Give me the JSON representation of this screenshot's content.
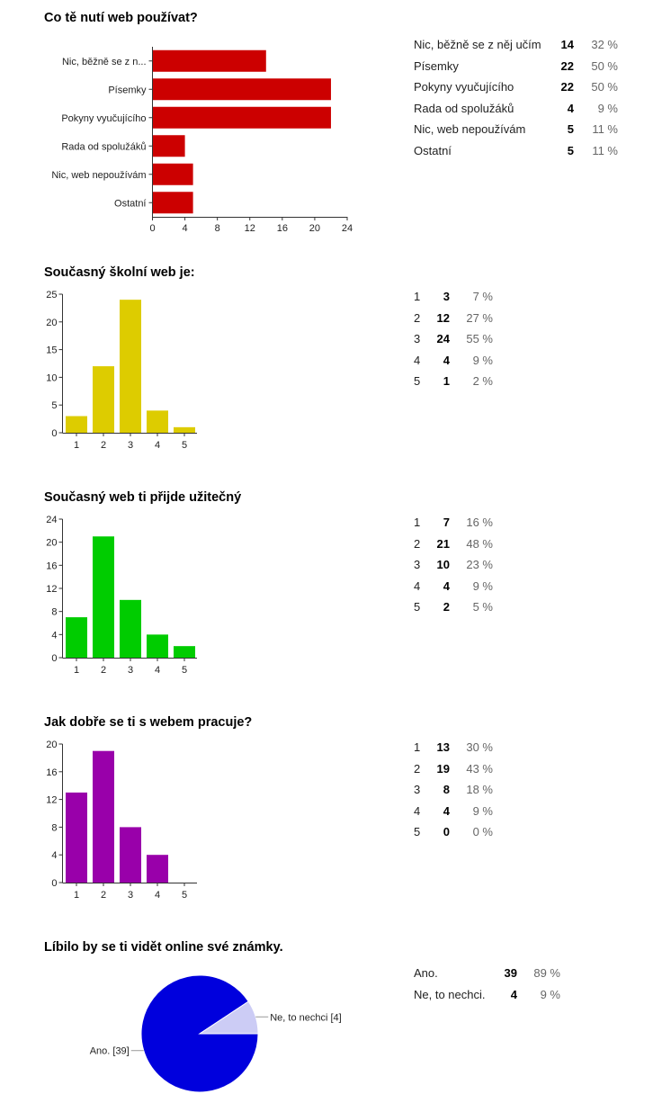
{
  "chart_data": [
    {
      "type": "bar",
      "orientation": "horizontal",
      "title": "Co tě nutí web používat?",
      "categories": [
        "Nic, běžně se z n...",
        "Písemky",
        "Pokyny vyučujícího",
        "Rada od spolužáků",
        "Nic, web nepoužívám",
        "Ostatní"
      ],
      "values": [
        14,
        22,
        22,
        4,
        5,
        5
      ],
      "xlim": [
        0,
        24
      ],
      "ticks": [
        0,
        4,
        8,
        12,
        16,
        20,
        24
      ],
      "color": "#cc0000",
      "table": [
        {
          "label": "Nic, běžně se z něj učím",
          "count": "14",
          "percent": "32 %"
        },
        {
          "label": "Písemky",
          "count": "22",
          "percent": "50 %"
        },
        {
          "label": "Pokyny vyučujícího",
          "count": "22",
          "percent": "50 %"
        },
        {
          "label": "Rada od spolužáků",
          "count": "4",
          "percent": "9 %"
        },
        {
          "label": "Nic, web nepoužívám",
          "count": "5",
          "percent": "11 %"
        },
        {
          "label": "Ostatní",
          "count": "5",
          "percent": "11 %"
        }
      ]
    },
    {
      "type": "bar",
      "title": "Současný školní web je:",
      "categories": [
        "1",
        "2",
        "3",
        "4",
        "5"
      ],
      "values": [
        3,
        12,
        24,
        4,
        1
      ],
      "ylim": [
        0,
        25
      ],
      "ticks": [
        0,
        5,
        10,
        15,
        20,
        25
      ],
      "color": "#ddcc00",
      "table": [
        {
          "label": "1",
          "count": "3",
          "percent": "7 %"
        },
        {
          "label": "2",
          "count": "12",
          "percent": "27 %"
        },
        {
          "label": "3",
          "count": "24",
          "percent": "55 %"
        },
        {
          "label": "4",
          "count": "4",
          "percent": "9 %"
        },
        {
          "label": "5",
          "count": "1",
          "percent": "2 %"
        }
      ]
    },
    {
      "type": "bar",
      "title": "Současný web ti přijde užitečný",
      "categories": [
        "1",
        "2",
        "3",
        "4",
        "5"
      ],
      "values": [
        7,
        21,
        10,
        4,
        2
      ],
      "ylim": [
        0,
        24
      ],
      "ticks": [
        0,
        4,
        8,
        12,
        16,
        20,
        24
      ],
      "color": "#00cc00",
      "table": [
        {
          "label": "1",
          "count": "7",
          "percent": "16 %"
        },
        {
          "label": "2",
          "count": "21",
          "percent": "48 %"
        },
        {
          "label": "3",
          "count": "10",
          "percent": "23 %"
        },
        {
          "label": "4",
          "count": "4",
          "percent": "9 %"
        },
        {
          "label": "5",
          "count": "2",
          "percent": "5 %"
        }
      ]
    },
    {
      "type": "bar",
      "title": "Jak dobře se ti s webem pracuje?",
      "categories": [
        "1",
        "2",
        "3",
        "4",
        "5"
      ],
      "values": [
        13,
        19,
        8,
        4,
        0
      ],
      "ylim": [
        0,
        20
      ],
      "ticks": [
        0,
        4,
        8,
        12,
        16,
        20
      ],
      "color": "#9900aa",
      "table": [
        {
          "label": "1",
          "count": "13",
          "percent": "30 %"
        },
        {
          "label": "2",
          "count": "19",
          "percent": "43 %"
        },
        {
          "label": "3",
          "count": "8",
          "percent": "18 %"
        },
        {
          "label": "4",
          "count": "4",
          "percent": "9 %"
        },
        {
          "label": "5",
          "count": "0",
          "percent": "0 %"
        }
      ]
    },
    {
      "type": "pie",
      "title": "Líbilo by se ti vidět online své známky.",
      "slices": [
        {
          "name": "Ano.",
          "value": 39,
          "color": "#0000dd",
          "callout": "Ano. [39]"
        },
        {
          "name": "Ne, to nechci.",
          "value": 4,
          "color": "#ccccf5",
          "callout": "Ne, to nechci [4]"
        }
      ],
      "table": [
        {
          "label": "Ano.",
          "count": "39",
          "percent": "89 %"
        },
        {
          "label": "Ne, to nechci.",
          "count": "4",
          "percent": "9 %"
        }
      ]
    }
  ]
}
